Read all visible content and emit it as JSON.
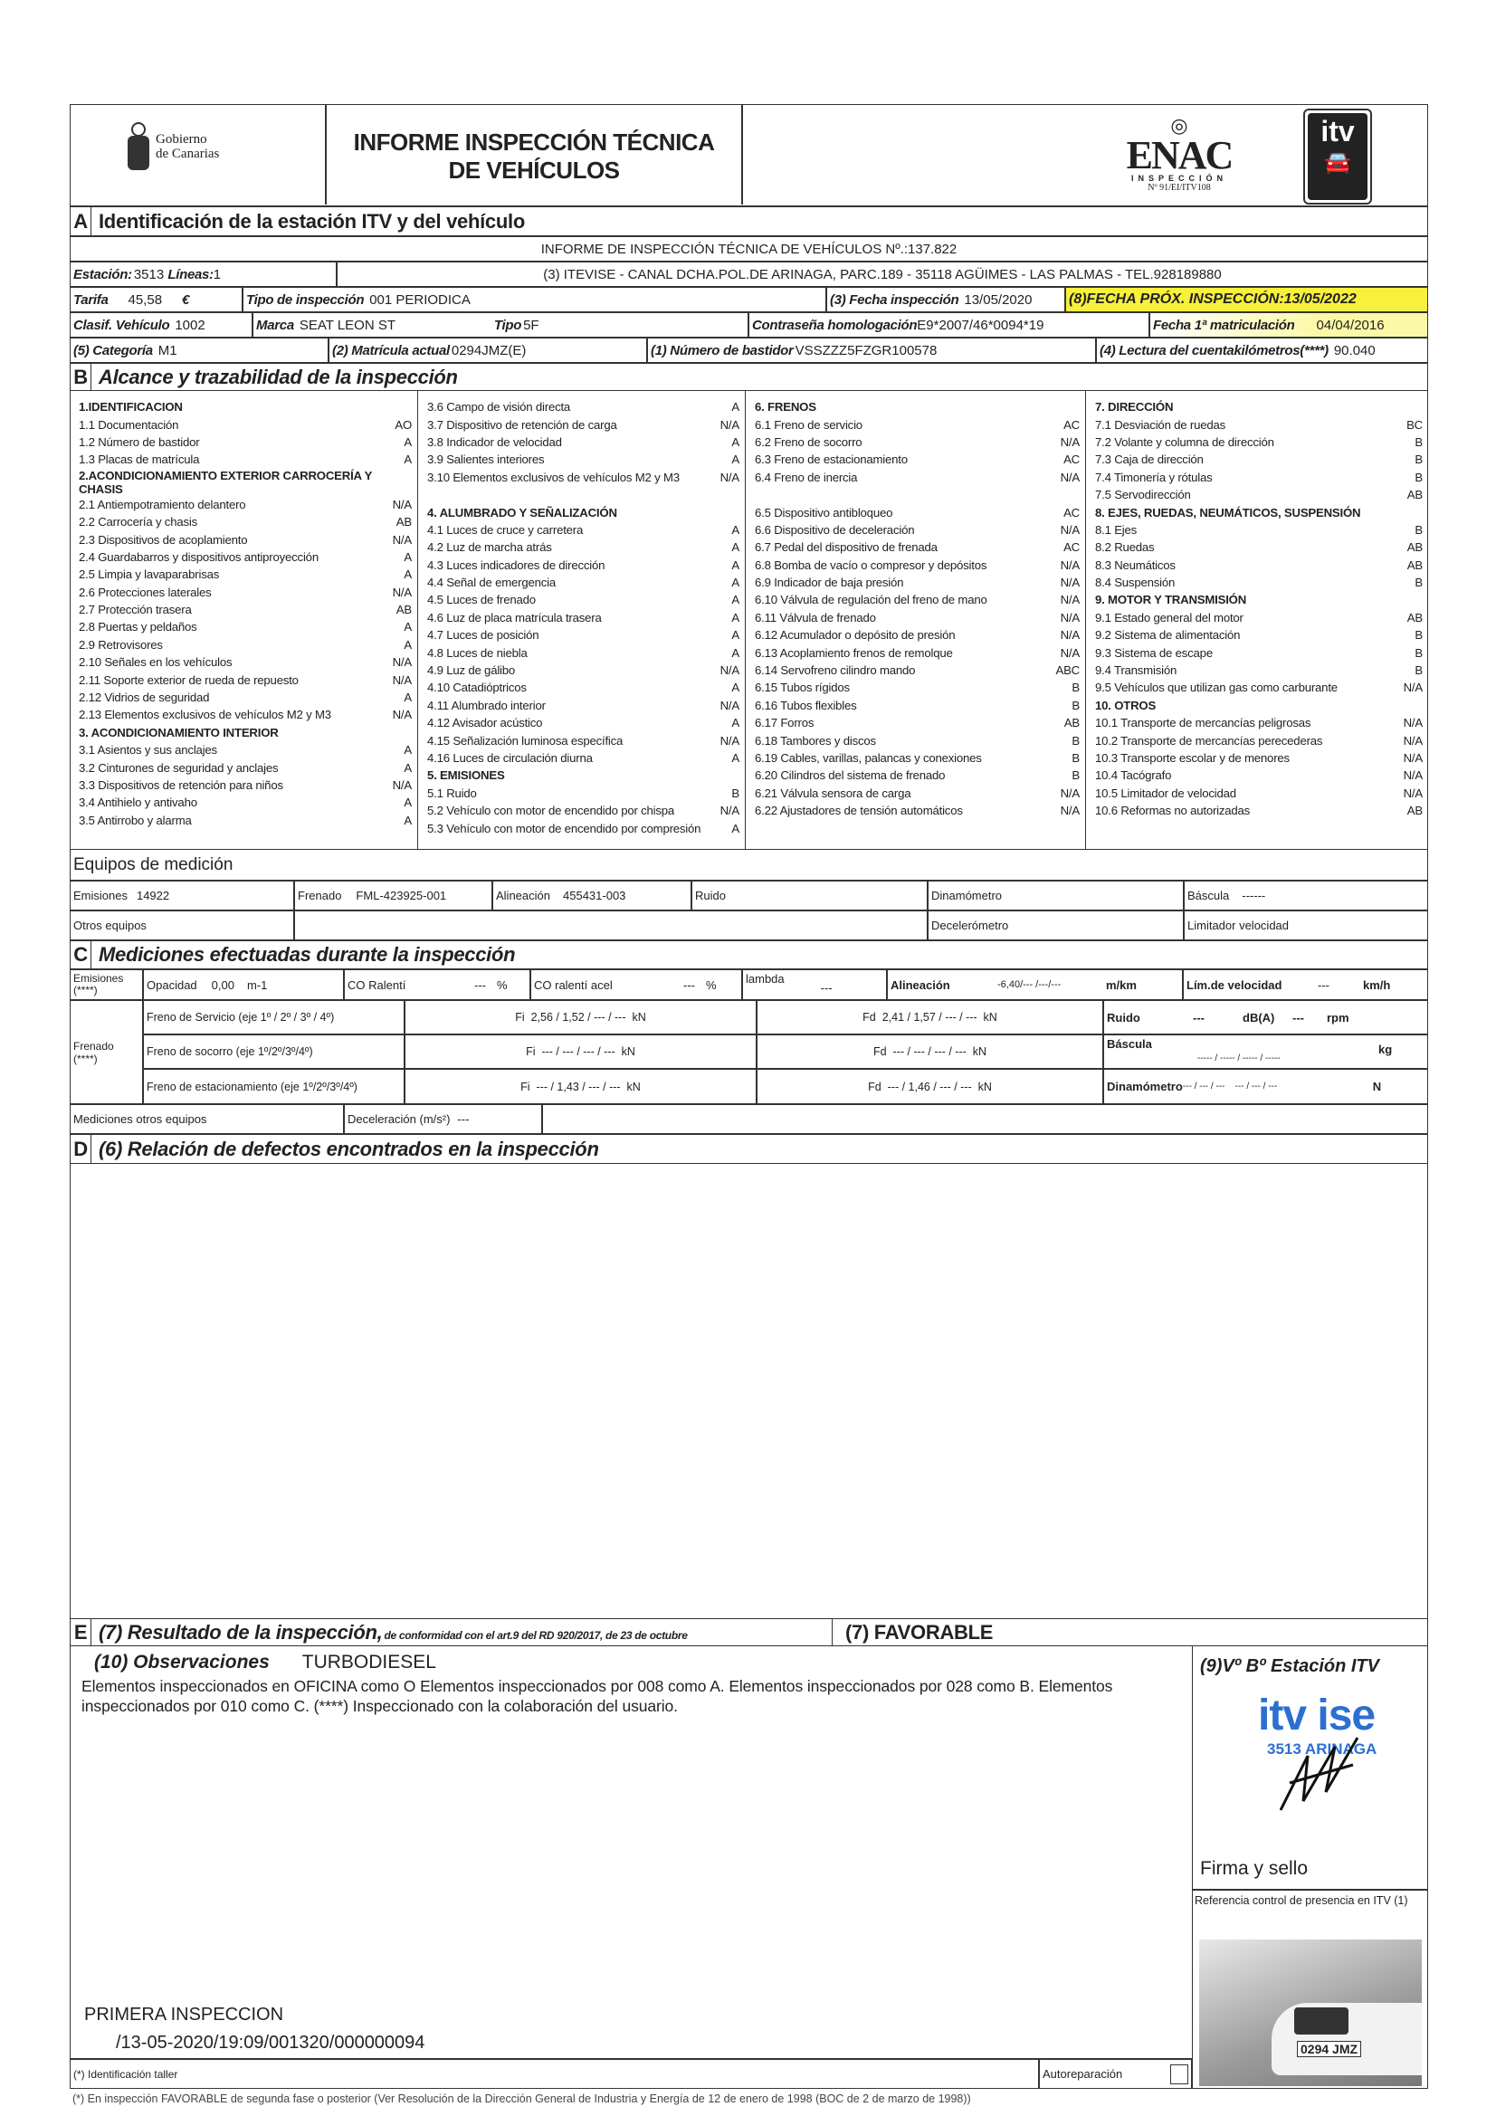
{
  "header": {
    "gov_logo_text": [
      "Gobierno",
      "de Canarias"
    ],
    "title_line1": "INFORME INSPECCIÓN TÉCNICA",
    "title_line2": "DE VEHÍCULOS",
    "enac_logo": "ENAC",
    "enac_sub": "INSPECCIÓN",
    "enac_number": "Nº 91/EI/ITV108",
    "itv_logo": "itv"
  },
  "section_a": {
    "letter": "A",
    "title": "Identificación de la estación ITV y del vehículo",
    "report_number": "INFORME DE INSPECCIÓN TÉCNICA DE VEHÍCULOS Nº.:137.822",
    "estacion_label": "Estación:",
    "estacion": "3513",
    "lineas_label": "Líneas:",
    "lineas": "1",
    "station_address": "(3) ITEVISE - CANAL DCHA.POL.DE ARINAGA, PARC.189 - 35118 AGÜIMES - LAS PALMAS - TEL.928189880",
    "tarifa_label": "Tarifa",
    "tarifa": "45,58",
    "currency": "€",
    "tipo_inspeccion_label": "Tipo de inspección",
    "tipo_inspeccion": "001 PERIODICA",
    "fecha_inspeccion_label": "(3) Fecha inspección",
    "fecha_inspeccion": "13/05/2020",
    "proxima_label": "(8)FECHA PRÓX. INSPECCIÓN:",
    "proxima": "13/05/2022",
    "clasif_label": "Clasif. Vehículo",
    "clasif": "1002",
    "marca_label": "Marca",
    "marca": "SEAT LEON ST",
    "tipo_label": "Tipo",
    "tipo": "5F",
    "contrasena_label": "Contraseña homologación",
    "contrasena": "E9*2007/46*0094*19",
    "fecha_matric_label": "Fecha 1ª matriculación",
    "fecha_matric": "04/04/2016",
    "categoria_label": "(5) Categoría",
    "categoria": "M1",
    "matricula_label": "(2) Matrícula actual",
    "matricula": "0294JMZ(E)",
    "bastidor_label": "(1) Número de bastidor",
    "bastidor": "VSSZZZ5FZGR100578",
    "km_label": "(4) Lectura del cuentakilómetros(****)",
    "km": "90.040"
  },
  "section_b": {
    "letter": "B",
    "title": "Alcance y trazabilidad de la inspección",
    "columns": [
      [
        {
          "h": "1.IDENTIFICACION"
        },
        {
          "l": "1.1 Documentación",
          "v": "AO"
        },
        {
          "l": "1.2 Número de bastidor",
          "v": "A"
        },
        {
          "l": "1.3 Placas de matrícula",
          "v": "A"
        },
        {
          "h": "2.ACONDICIONAMIENTO EXTERIOR CARROCERÍA Y CHASIS"
        },
        {
          "l": "2.1 Antiempotramiento delantero",
          "v": "N/A"
        },
        {
          "l": "2.2 Carrocería y chasis",
          "v": "AB"
        },
        {
          "l": "2.3 Dispositivos de acoplamiento",
          "v": "N/A"
        },
        {
          "l": "2.4 Guardabarros y dispositivos antiproyección",
          "v": "A"
        },
        {
          "l": "2.5 Limpia y lavaparabrisas",
          "v": "A"
        },
        {
          "l": "2.6 Protecciones laterales",
          "v": "N/A"
        },
        {
          "l": "2.7 Protección trasera",
          "v": "AB"
        },
        {
          "l": "2.8 Puertas y peldaños",
          "v": "A"
        },
        {
          "l": "2.9 Retrovisores",
          "v": "A"
        },
        {
          "l": "2.10 Señales en los vehículos",
          "v": "N/A"
        },
        {
          "l": "2.11 Soporte exterior de rueda de repuesto",
          "v": "N/A"
        },
        {
          "l": "2.12 Vidrios de seguridad",
          "v": "A"
        },
        {
          "l": "2.13 Elementos exclusivos de vehículos M2 y M3",
          "v": "N/A"
        },
        {
          "h": "3. ACONDICIONAMIENTO INTERIOR"
        },
        {
          "l": "3.1 Asientos y sus anclajes",
          "v": "A"
        },
        {
          "l": "3.2 Cinturones de seguridad y anclajes",
          "v": "A"
        },
        {
          "l": "3.3 Dispositivos de retención para niños",
          "v": "N/A"
        },
        {
          "l": "3.4 Antihielo y antivaho",
          "v": "A"
        },
        {
          "l": "3.5 Antirrobo y alarma",
          "v": "A"
        }
      ],
      [
        {
          "l": "3.6 Campo de visión directa",
          "v": "A"
        },
        {
          "l": "3.7 Dispositivo de retención de carga",
          "v": "N/A"
        },
        {
          "l": "3.8 Indicador de velocidad",
          "v": "A"
        },
        {
          "l": "3.9 Salientes interiores",
          "v": "A"
        },
        {
          "l": "3.10 Elementos exclusivos de vehículos M2 y M3",
          "v": "N/A"
        },
        {
          "s": true
        },
        {
          "h": "4. ALUMBRADO Y SEÑALIZACIÓN"
        },
        {
          "l": "4.1 Luces de cruce y carretera",
          "v": "A"
        },
        {
          "l": "4.2 Luz de marcha atrás",
          "v": "A"
        },
        {
          "l": "4.3 Luces indicadores de dirección",
          "v": "A"
        },
        {
          "l": "4.4 Señal de emergencia",
          "v": "A"
        },
        {
          "l": "4.5 Luces de frenado",
          "v": "A"
        },
        {
          "l": "4.6 Luz de placa matrícula trasera",
          "v": "A"
        },
        {
          "l": "4.7 Luces de posición",
          "v": "A"
        },
        {
          "l": "4.8 Luces de niebla",
          "v": "A"
        },
        {
          "l": "4.9 Luz de gálibo",
          "v": "N/A"
        },
        {
          "l": "4.10 Catadióptricos",
          "v": "A"
        },
        {
          "l": "4.11 Alumbrado interior",
          "v": "N/A"
        },
        {
          "l": "4.12 Avisador acústico",
          "v": "A"
        },
        {
          "l": "4.15 Señalización luminosa específica",
          "v": "N/A"
        },
        {
          "l": "4.16 Luces de circulación diurna",
          "v": "A"
        },
        {
          "h": "5. EMISIONES"
        },
        {
          "l": "5.1 Ruido",
          "v": "B"
        },
        {
          "l": "5.2 Vehículo con motor de encendido por chispa",
          "v": "N/A"
        },
        {
          "l": "5.3 Vehículo con motor de encendido por compresión",
          "v": "A"
        }
      ],
      [
        {
          "h": "6. FRENOS"
        },
        {
          "l": "6.1 Freno de servicio",
          "v": "AC"
        },
        {
          "l": "6.2 Freno de socorro",
          "v": "N/A"
        },
        {
          "l": "6.3 Freno de estacionamiento",
          "v": "AC"
        },
        {
          "l": "6.4 Freno de inercia",
          "v": "N/A"
        },
        {
          "s": true
        },
        {
          "l": "6.5 Dispositivo antibloqueo",
          "v": "AC"
        },
        {
          "l": "6.6 Dispositivo de deceleración",
          "v": "N/A"
        },
        {
          "l": "6.7 Pedal del dispositivo de frenada",
          "v": "AC"
        },
        {
          "l": "6.8 Bomba de vacío o compresor y depósitos",
          "v": "N/A"
        },
        {
          "l": "6.9 Indicador de baja presión",
          "v": "N/A"
        },
        {
          "l": "6.10 Válvula de regulación del freno de mano",
          "v": "N/A"
        },
        {
          "l": "6.11 Válvula de frenado",
          "v": "N/A"
        },
        {
          "l": "6.12 Acumulador o depósito de presión",
          "v": "N/A"
        },
        {
          "l": "6.13 Acoplamiento frenos de remolque",
          "v": "N/A"
        },
        {
          "l": "6.14 Servofreno cilindro mando",
          "v": "ABC"
        },
        {
          "l": "6.15 Tubos rígidos",
          "v": "B"
        },
        {
          "l": "6.16 Tubos flexibles",
          "v": "B"
        },
        {
          "l": "6.17 Forros",
          "v": "AB"
        },
        {
          "l": "6.18 Tambores y discos",
          "v": "B"
        },
        {
          "l": "6.19 Cables, varillas, palancas y conexiones",
          "v": "B"
        },
        {
          "l": "6.20 Cilindros del sistema de frenado",
          "v": "B"
        },
        {
          "l": "6.21 Válvula sensora de carga",
          "v": "N/A"
        },
        {
          "l": "6.22 Ajustadores de tensión automáticos",
          "v": "N/A"
        }
      ],
      [
        {
          "h": "7. DIRECCIÓN"
        },
        {
          "l": "7.1 Desviación de ruedas",
          "v": "BC"
        },
        {
          "l": "7.2 Volante y columna de dirección",
          "v": "B"
        },
        {
          "l": "7.3 Caja de dirección",
          "v": "B"
        },
        {
          "l": "7.4 Timonería y rótulas",
          "v": "B"
        },
        {
          "l": "7.5 Servodirección",
          "v": "AB"
        },
        {
          "h": "8. EJES, RUEDAS, NEUMÁTICOS, SUSPENSIÓN"
        },
        {
          "l": "8.1 Ejes",
          "v": "B"
        },
        {
          "l": "8.2 Ruedas",
          "v": "AB"
        },
        {
          "l": "8.3 Neumáticos",
          "v": "AB"
        },
        {
          "l": "8.4 Suspensión",
          "v": "B"
        },
        {
          "h": "9. MOTOR Y TRANSMISIÓN"
        },
        {
          "l": "9.1 Estado general del motor",
          "v": "AB"
        },
        {
          "l": "9.2 Sistema de alimentación",
          "v": "B"
        },
        {
          "l": "9.3 Sistema de escape",
          "v": "B"
        },
        {
          "l": "9.4 Transmisión",
          "v": "B"
        },
        {
          "l": "9.5 Vehículos que utilizan gas como carburante",
          "v": "N/A"
        },
        {
          "h": "10. OTROS"
        },
        {
          "l": "10.1 Transporte de mercancías peligrosas",
          "v": "N/A"
        },
        {
          "l": "10.2 Transporte de mercancías perecederas",
          "v": "N/A"
        },
        {
          "l": "10.3 Transporte escolar y de menores",
          "v": "N/A"
        },
        {
          "l": "10.4 Tacógrafo",
          "v": "N/A"
        },
        {
          "l": "10.5 Limitador de velocidad",
          "v": "N/A"
        },
        {
          "l": "10.6 Reformas no autorizadas",
          "v": "AB"
        }
      ]
    ]
  },
  "equipos": {
    "title": "Equipos de medición",
    "emisiones_label": "Emisiones",
    "emisiones": "14922",
    "frenado_label": "Frenado",
    "frenado": "FML-423925-001",
    "alineacion_label": "Alineación",
    "alineacion": "455431-003",
    "ruido_label": "Ruido",
    "dinamometro_label": "Dinamómetro",
    "bascula_label": "Báscula",
    "bascula": "------",
    "otros_label": "Otros equipos",
    "decelerometro_label": "Decelerómetro",
    "limitador_label": "Limitador velocidad"
  },
  "section_c": {
    "letter": "C",
    "title": "Mediciones efectuadas durante la inspección",
    "emisiones_label": "Emisiones (****)",
    "opacidad_label": "Opacidad",
    "opacidad": "0,00",
    "opacidad_unit": "m-1",
    "co_ralenti_label": "CO Ralentí",
    "co_ralenti": "---",
    "co_ralenti_acel_label": "CO ralentí acel",
    "co_ralenti_acel": "---",
    "percent": "%",
    "lambda_label": "lambda",
    "lambda": "---",
    "alineacion_label": "Alineación",
    "alineacion": "-6,40/--- /---/---",
    "alineacion_unit": "m/km",
    "lim_vel_label": "Lím.de velocidad",
    "lim_vel": "---",
    "lim_vel_unit": "km/h",
    "frenado_label": "Frenado (****)",
    "brakes": [
      {
        "label": "Freno de Servicio (eje 1º / 2º / 3º / 4º)",
        "fi": "Fi  2,56 / 1,52 / --- / ---  kN",
        "fd": "Fd  2,41 / 1,57 / --- / ---  kN"
      },
      {
        "label": "Freno de socorro (eje 1º/2º/3º/4º)",
        "fi": "Fi  --- / --- / --- / ---  kN",
        "fd": "Fd  --- / --- / --- / ---  kN"
      },
      {
        "label": "Freno de estacionamiento (eje 1º/2º/3º/4º)",
        "fi": "Fi  --- / 1,43 / --- / ---  kN",
        "fd": "Fd  --- / 1,46 / --- / ---  kN"
      }
    ],
    "ruido_label": "Ruido",
    "ruido": "---",
    "ruido_unit": "dB(A)",
    "rpm": "---",
    "rpm_unit": "rpm",
    "bascula_label": "Báscula",
    "bascula": "----- / ----- / ----- / -----",
    "bascula_unit": "kg",
    "dinamometro_label": "Dinamómetro",
    "dinamometro": "--- / --- / ---    --- / --- / ---",
    "dinamometro_unit": "N",
    "otros_label": "Mediciones otros equipos",
    "deceleracion_label": "Deceleración (m/s²)",
    "deceleracion": "---"
  },
  "section_d": {
    "letter": "D",
    "title": "(6) Relación de defectos encontrados en la inspección"
  },
  "section_e": {
    "letter": "E",
    "title": "(7) Resultado de la inspección,",
    "title_note": "de conformidad con el art.9 del RD 920/2017, de 23 de octubre",
    "result": "(7) FAVORABLE",
    "obs_label": "(10) Observaciones",
    "obs_value": "TURBODIESEL",
    "obs_text": "Elementos inspeccionados en OFICINA como O Elementos inspeccionados por 008 como A. Elementos inspeccionados por 028 como B. Elementos inspeccionados por 010 como C. (****) Inspeccionado con la colaboración del usuario.",
    "primera": "PRIMERA INSPECCION",
    "code": "/13-05-2020/19:09/001320/000000094",
    "taller": "(*) Identificación taller",
    "autoreparacion": "Autoreparación",
    "vb_label": "(9)Vº Bº Estación ITV",
    "stamp_logo": "itv ise",
    "stamp_text": "3513 ARINAGA",
    "firma": "Firma y sello",
    "referencia": "Referencia control de presencia en ITV (1)",
    "photo_plate": "0294 JMZ"
  },
  "footer": "(*) En inspección FAVORABLE de segunda fase o posterior (Ver Resolución de la Dirección General de Industria y Energía de 12 de enero de 1998 (BOC de 2 de marzo de 1998))",
  "colors": {
    "highlight": "#f7f03c",
    "stamp_blue": "#2c6fd1"
  }
}
